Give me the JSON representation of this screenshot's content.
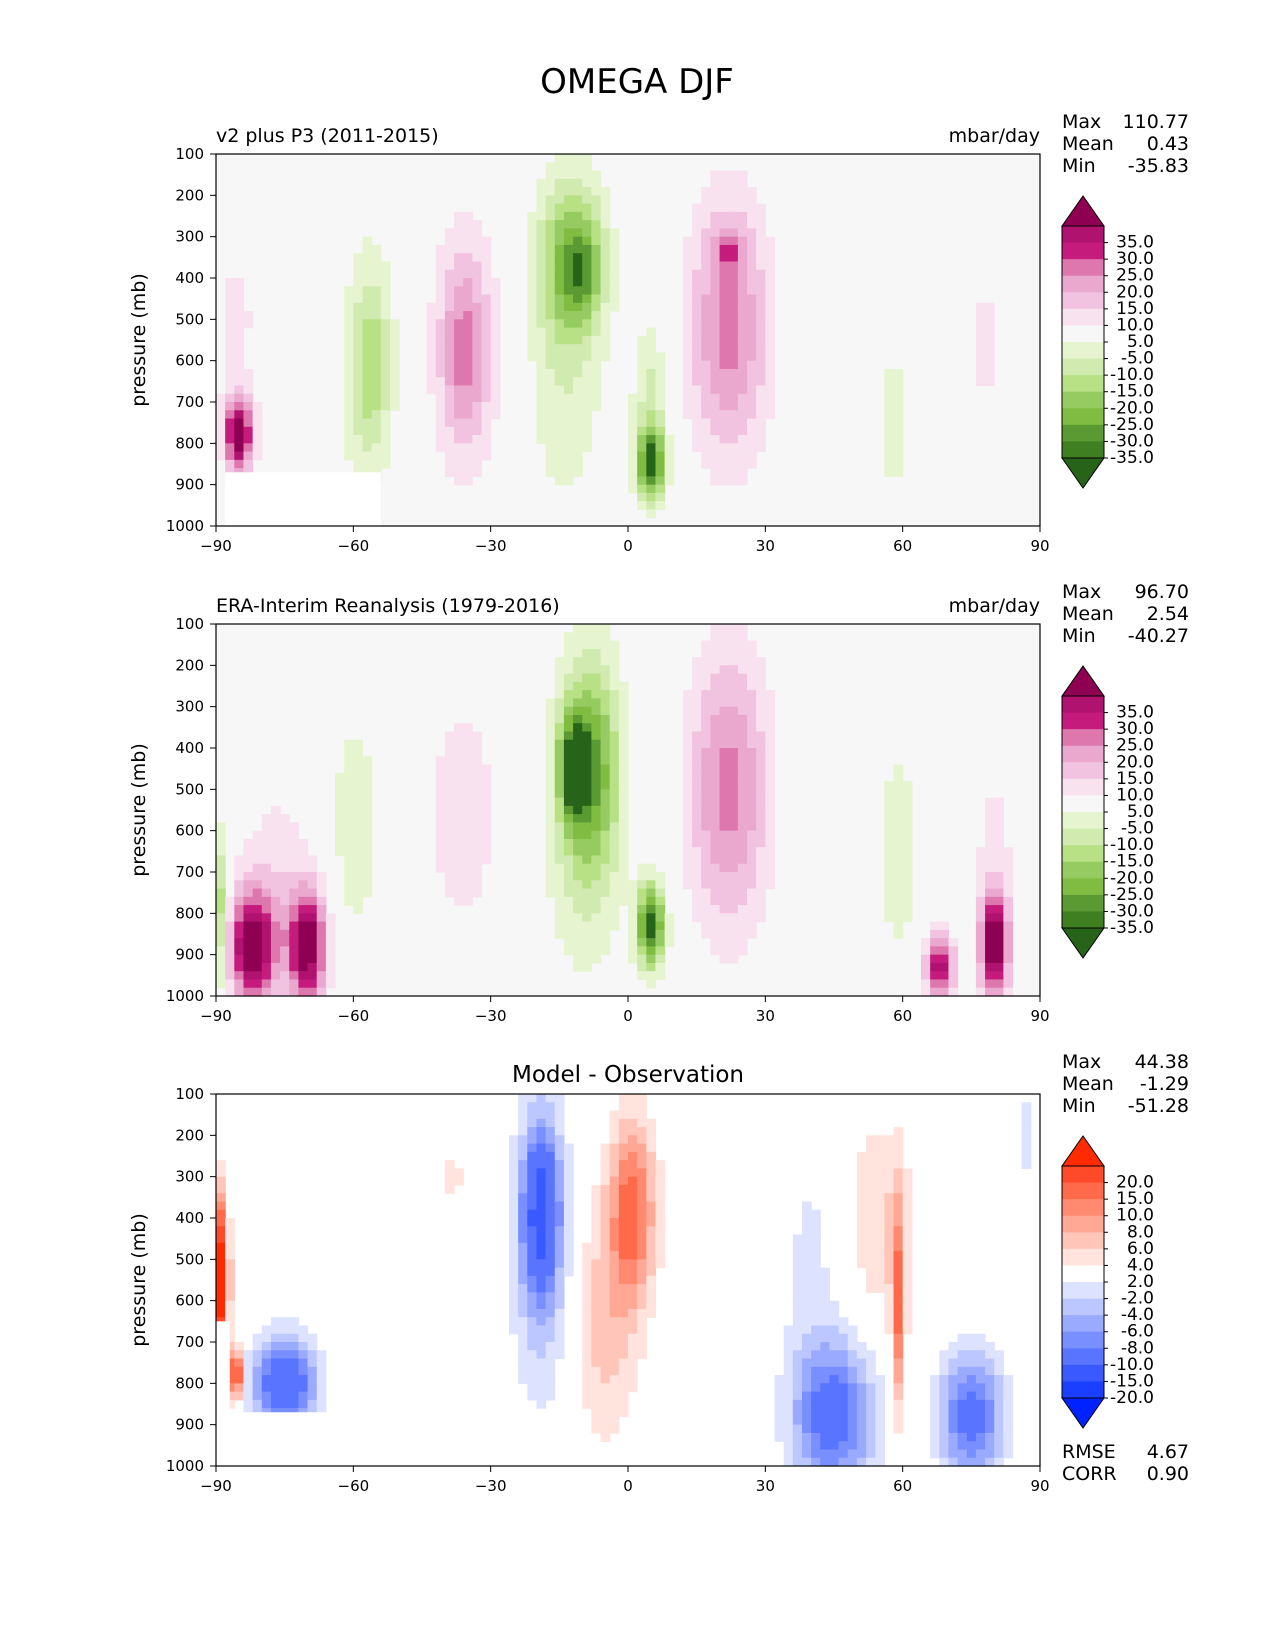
{
  "figure_title": "OMEGA DJF",
  "chart_data": [
    {
      "type": "contour",
      "panel_label": "v2 plus P3 (2011-2015)",
      "units": "mbar/day",
      "ylabel": "pressure (mb)",
      "xlim": [
        -90,
        90
      ],
      "ylim": [
        1000,
        100
      ],
      "x_ticks": [
        "−90",
        "−60",
        "−30",
        "0",
        "30",
        "60",
        "90"
      ],
      "y_ticks": [
        "100",
        "200",
        "300",
        "400",
        "500",
        "600",
        "700",
        "800",
        "900",
        "1000"
      ],
      "stats": [
        {
          "label": "Max",
          "value": "110.77"
        },
        {
          "label": "Mean",
          "value": "0.43"
        },
        {
          "label": "Min",
          "value": "-35.83"
        }
      ],
      "colorbar": {
        "labels": [
          "35.0",
          "30.0",
          "25.0",
          "20.0",
          "15.0",
          "10.0",
          "5.0",
          "-5.0",
          "-10.0",
          "-15.0",
          "-20.0",
          "-25.0",
          "-30.0",
          "-35.0"
        ],
        "colors": [
          "#8e0152",
          "#b0126f",
          "#c51b7d",
          "#de77ae",
          "#eaa8cf",
          "#f1c3e0",
          "#f8e2ef",
          "#f7f7f7",
          "#e6f5d0",
          "#d0eab0",
          "#b8e186",
          "#96cb62",
          "#7fbc41",
          "#5b9a32",
          "#3f7f22",
          "#276419"
        ]
      },
      "features": [
        {
          "lon": -85,
          "p": 780,
          "w": 3,
          "h": 90,
          "v": 40
        },
        {
          "lon": -86,
          "p": 500,
          "w": 6,
          "h": 260,
          "v": 6
        },
        {
          "lon": -70,
          "p": 520,
          "w": 8,
          "h": 200,
          "v": 5
        },
        {
          "lon": -58,
          "p": 600,
          "w": 8,
          "h": 330,
          "v": -8
        },
        {
          "lon": -56,
          "p": 620,
          "w": 4,
          "h": 220,
          "v": -12
        },
        {
          "lon": -35,
          "p": 560,
          "w": 9,
          "h": 330,
          "v": 9
        },
        {
          "lon": -36,
          "p": 580,
          "w": 5,
          "h": 230,
          "v": 14
        },
        {
          "lon": -12,
          "p": 350,
          "w": 7,
          "h": 190,
          "v": -24
        },
        {
          "lon": -10,
          "p": 390,
          "w": 4,
          "h": 90,
          "v": -11
        },
        {
          "lon": -14,
          "p": 620,
          "w": 9,
          "h": 380,
          "v": -9
        },
        {
          "lon": 5,
          "p": 850,
          "w": 3,
          "h": 80,
          "v": -36
        },
        {
          "lon": 5,
          "p": 700,
          "w": 4,
          "h": 200,
          "v": -12
        },
        {
          "lon": 22,
          "p": 520,
          "w": 9,
          "h": 320,
          "v": 22
        },
        {
          "lon": 22,
          "p": 330,
          "w": 3,
          "h": 50,
          "v": 14
        },
        {
          "lon": 58,
          "p": 750,
          "w": 5,
          "h": 230,
          "v": -7
        },
        {
          "lon": 78,
          "p": 560,
          "w": 4,
          "h": 270,
          "v": 6
        }
      ]
    },
    {
      "type": "contour",
      "panel_label": "ERA-Interim Reanalysis (1979-2016)",
      "units": "mbar/day",
      "ylabel": "pressure (mb)",
      "xlim": [
        -90,
        90
      ],
      "ylim": [
        1000,
        100
      ],
      "x_ticks": [
        "−90",
        "−60",
        "−30",
        "0",
        "30",
        "60",
        "90"
      ],
      "y_ticks": [
        "100",
        "200",
        "300",
        "400",
        "500",
        "600",
        "700",
        "800",
        "900",
        "1000"
      ],
      "stats": [
        {
          "label": "Max",
          "value": "96.70"
        },
        {
          "label": "Mean",
          "value": "2.54"
        },
        {
          "label": "Min",
          "value": "-40.27"
        }
      ],
      "colorbar": {
        "labels": [
          "35.0",
          "30.0",
          "25.0",
          "20.0",
          "15.0",
          "10.0",
          "5.0",
          "-5.0",
          "-10.0",
          "-15.0",
          "-20.0",
          "-25.0",
          "-30.0",
          "-35.0"
        ],
        "colors": [
          "#8e0152",
          "#b0126f",
          "#c51b7d",
          "#de77ae",
          "#eaa8cf",
          "#f1c3e0",
          "#f8e2ef",
          "#f7f7f7",
          "#e6f5d0",
          "#d0eab0",
          "#b8e186",
          "#96cb62",
          "#7fbc41",
          "#5b9a32",
          "#3f7f22",
          "#276419"
        ]
      },
      "features": [
        {
          "lon": -82,
          "p": 880,
          "w": 5,
          "h": 130,
          "v": 40
        },
        {
          "lon": -70,
          "p": 880,
          "w": 4,
          "h": 130,
          "v": 40
        },
        {
          "lon": -76,
          "p": 740,
          "w": 10,
          "h": 280,
          "v": 8
        },
        {
          "lon": -89,
          "p": 800,
          "w": 1.5,
          "h": 200,
          "v": -20
        },
        {
          "lon": -60,
          "p": 600,
          "w": 7,
          "h": 330,
          "v": -8
        },
        {
          "lon": -36,
          "p": 560,
          "w": 9,
          "h": 340,
          "v": 8
        },
        {
          "lon": -8,
          "p": 450,
          "w": 6,
          "h": 260,
          "v": -24
        },
        {
          "lon": -12,
          "p": 450,
          "w": 3,
          "h": 120,
          "v": -30
        },
        {
          "lon": -10,
          "p": 580,
          "w": 10,
          "h": 420,
          "v": -9
        },
        {
          "lon": 5,
          "p": 830,
          "w": 3,
          "h": 100,
          "v": -40
        },
        {
          "lon": 22,
          "p": 500,
          "w": 9,
          "h": 340,
          "v": 22
        },
        {
          "lon": 59,
          "p": 650,
          "w": 4,
          "h": 260,
          "v": -10
        },
        {
          "lon": 80,
          "p": 880,
          "w": 3,
          "h": 120,
          "v": 40
        },
        {
          "lon": 68,
          "p": 930,
          "w": 3,
          "h": 80,
          "v": 35
        },
        {
          "lon": 80,
          "p": 680,
          "w": 5,
          "h": 300,
          "v": 7
        }
      ]
    },
    {
      "type": "contour",
      "panel_label": "Model - Observation",
      "units": "",
      "ylabel": "pressure (mb)",
      "xlim": [
        -90,
        90
      ],
      "ylim": [
        1000,
        100
      ],
      "x_ticks": [
        "−90",
        "−60",
        "−30",
        "0",
        "30",
        "60",
        "90"
      ],
      "y_ticks": [
        "100",
        "200",
        "300",
        "400",
        "500",
        "600",
        "700",
        "800",
        "900",
        "1000"
      ],
      "stats": [
        {
          "label": "Max",
          "value": "44.38"
        },
        {
          "label": "Mean",
          "value": "-1.29"
        },
        {
          "label": "Min",
          "value": "-51.28"
        }
      ],
      "metrics": [
        {
          "label": "RMSE",
          "value": "4.67"
        },
        {
          "label": "CORR",
          "value": "0.90"
        }
      ],
      "colorbar": {
        "labels": [
          "20.0",
          "15.0",
          "10.0",
          "8.0",
          "6.0",
          "4.0",
          "2.0",
          "-2.0",
          "-4.0",
          "-6.0",
          "-8.0",
          "-10.0",
          "-15.0",
          "-20.0"
        ],
        "colors": [
          "#ff2a00",
          "#ff4a2a",
          "#ff6b4a",
          "#ff8a70",
          "#ffa896",
          "#ffc5b8",
          "#ffe3dc",
          "#ffffff",
          "#dde3ff",
          "#bcc7ff",
          "#9aaaff",
          "#7a8fff",
          "#5974ff",
          "#3a5aff",
          "#1a3fff",
          "#0022ff"
        ]
      },
      "features": [
        {
          "lon": -19,
          "p": 380,
          "w": 4,
          "h": 200,
          "v": -14
        },
        {
          "lon": -19,
          "p": 500,
          "w": 7,
          "h": 380,
          "v": -5
        },
        {
          "lon": 1,
          "p": 380,
          "w": 5,
          "h": 220,
          "v": 11
        },
        {
          "lon": -5,
          "p": 650,
          "w": 7,
          "h": 300,
          "v": 5
        },
        {
          "lon": -38,
          "p": 300,
          "w": 3,
          "h": 90,
          "v": 2.5
        },
        {
          "lon": -75,
          "p": 800,
          "w": 7,
          "h": 110,
          "v": -14
        },
        {
          "lon": -89,
          "p": 550,
          "w": 1.5,
          "h": 180,
          "v": 25
        },
        {
          "lon": -86,
          "p": 780,
          "w": 1.2,
          "h": 60,
          "v": 25
        },
        {
          "lon": 45,
          "p": 880,
          "w": 9,
          "h": 180,
          "v": -12
        },
        {
          "lon": 75,
          "p": 880,
          "w": 7,
          "h": 150,
          "v": -12
        },
        {
          "lon": 59,
          "p": 630,
          "w": 1.5,
          "h": 260,
          "v": 10
        },
        {
          "lon": 55,
          "p": 400,
          "w": 8,
          "h": 250,
          "v": 4
        },
        {
          "lon": 40,
          "p": 500,
          "w": 7,
          "h": 350,
          "v": -2.5
        },
        {
          "lon": 87,
          "p": 200,
          "w": 3,
          "h": 120,
          "v": -3
        }
      ]
    }
  ]
}
